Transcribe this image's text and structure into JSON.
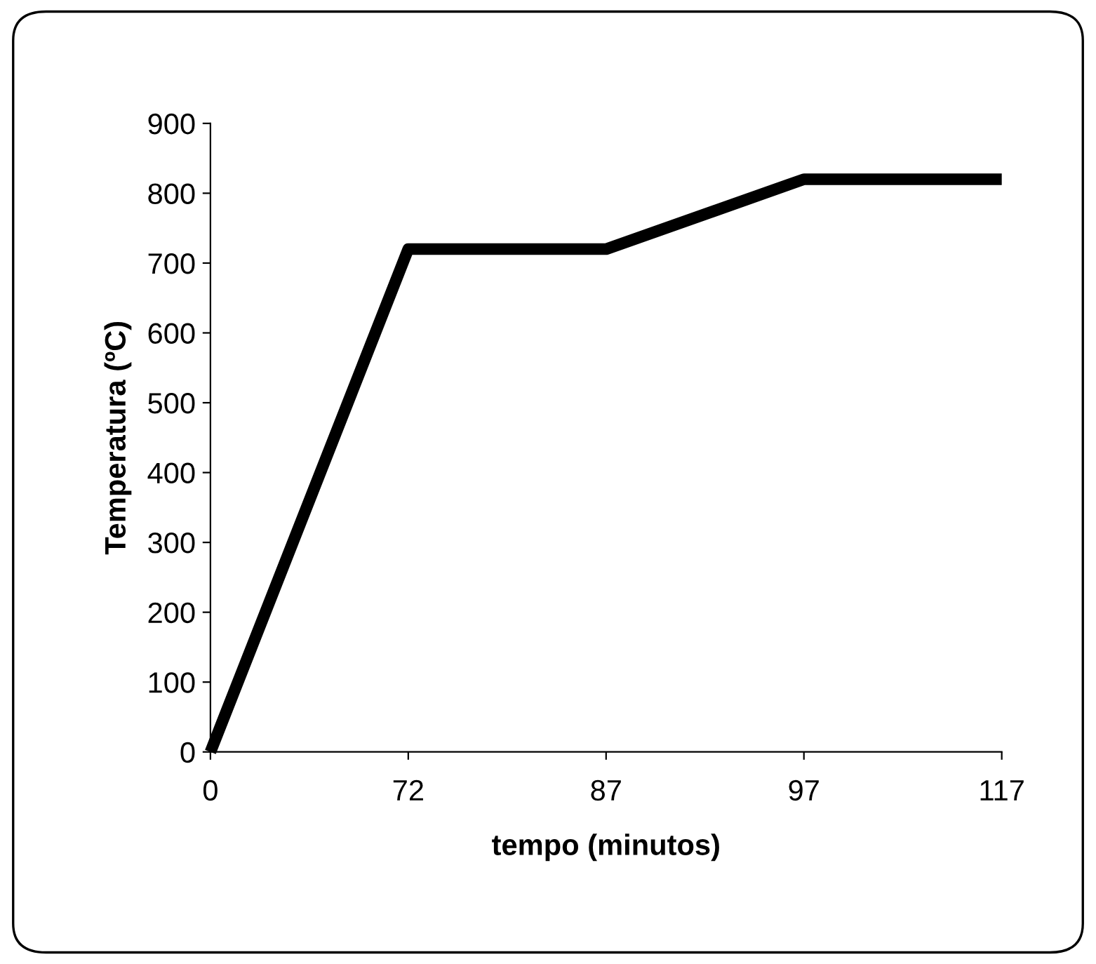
{
  "chart_data": {
    "type": "line",
    "xlabel": "tempo (minutos)",
    "ylabel": "Temperatura (ºC)",
    "categories": [
      "0",
      "72",
      "87",
      "97",
      "117"
    ],
    "series": [
      {
        "color": "#000000",
        "values": [
          0,
          720,
          720,
          820,
          820
        ]
      }
    ],
    "ylim": [
      0,
      900
    ],
    "yticks": [
      0,
      100,
      200,
      300,
      400,
      500,
      600,
      700,
      800,
      900
    ],
    "marker": "none",
    "line_style": "solid"
  }
}
